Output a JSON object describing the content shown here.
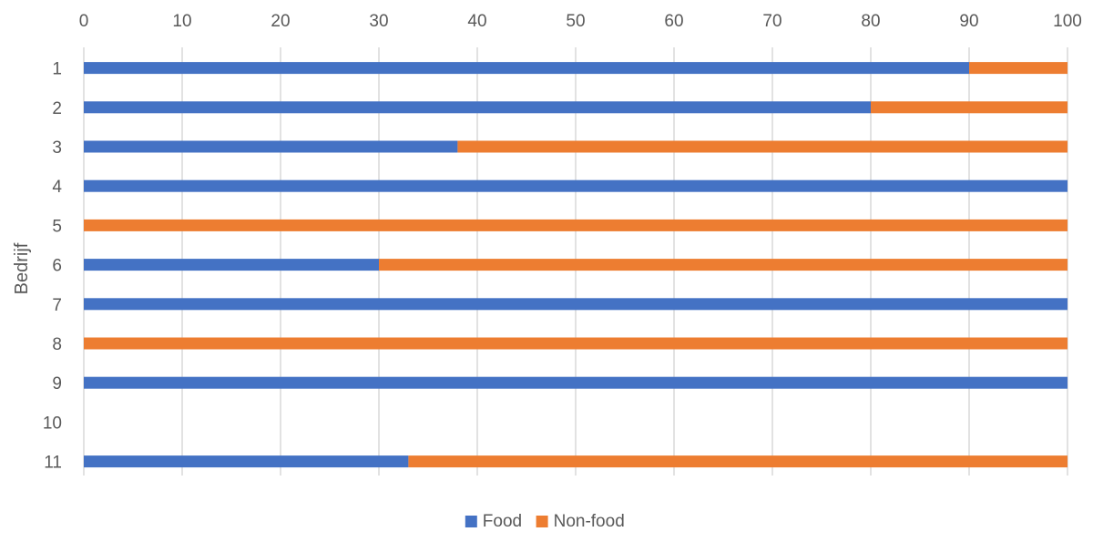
{
  "chart_data": {
    "type": "bar",
    "orientation": "horizontal",
    "stacked": true,
    "categories": [
      "1",
      "2",
      "3",
      "4",
      "5",
      "6",
      "7",
      "8",
      "9",
      "10",
      "11"
    ],
    "series": [
      {
        "name": "Food",
        "color": "#4472C4",
        "values": [
          90,
          80,
          38,
          100,
          0,
          30,
          100,
          0,
          100,
          0,
          33
        ]
      },
      {
        "name": "Non-food",
        "color": "#ED7D31",
        "values": [
          10,
          20,
          62,
          0,
          100,
          70,
          0,
          100,
          0,
          0,
          67
        ]
      }
    ],
    "xticks": [
      "0",
      "10",
      "20",
      "30",
      "40",
      "50",
      "60",
      "70",
      "80",
      "90",
      "100"
    ],
    "xlim": [
      0,
      100
    ],
    "xaxis_position": "top",
    "ylabel": "Bedrijf",
    "grid": true,
    "grid_color": "#D9D9D9",
    "legend_position": "bottom"
  }
}
